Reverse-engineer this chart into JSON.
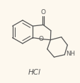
{
  "bg_color": "#fdf8ee",
  "line_color": "#555555",
  "text_color": "#555555",
  "hcl_text": "HCl",
  "nh_text": "NH",
  "o_carbonyl": "O",
  "o_ring": "O",
  "figsize": [
    1.14,
    1.18
  ],
  "dpi": 100
}
